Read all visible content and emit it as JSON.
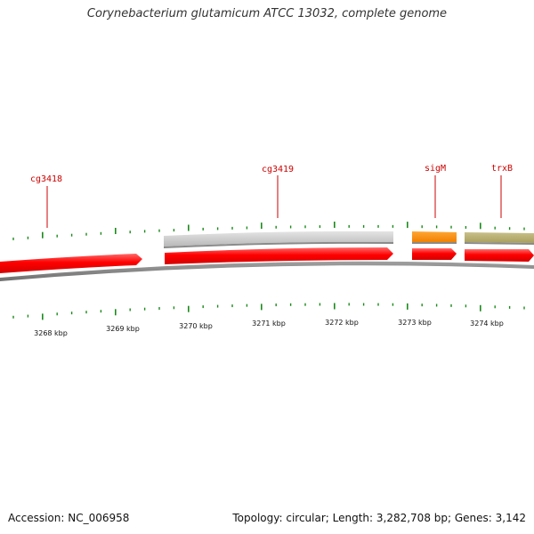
{
  "title": "Corynebacterium glutamicum ATCC 13032, complete genome",
  "footer": {
    "accession": "Accession: NC_006958",
    "stats": "Topology: circular; Length: 3,282,708 bp; Genes: 3,142"
  },
  "colors": {
    "cds_forward": "#ff0000",
    "gene_gray": "#c8c8c8",
    "gene_orange": "#ff8c00",
    "gene_olive": "#b4ac6c",
    "backbone": "#888888",
    "tick": "#1a8a1a",
    "gene_label": "#cc0000"
  },
  "ruler": {
    "labels": [
      "3268 kbp",
      "3269 kbp",
      "3270 kbp",
      "3271 kbp",
      "3272 kbp",
      "3273 kbp",
      "3274 kbp"
    ]
  },
  "gene_labels": [
    "cg3418",
    "cg3419",
    "sigM",
    "trxB"
  ]
}
